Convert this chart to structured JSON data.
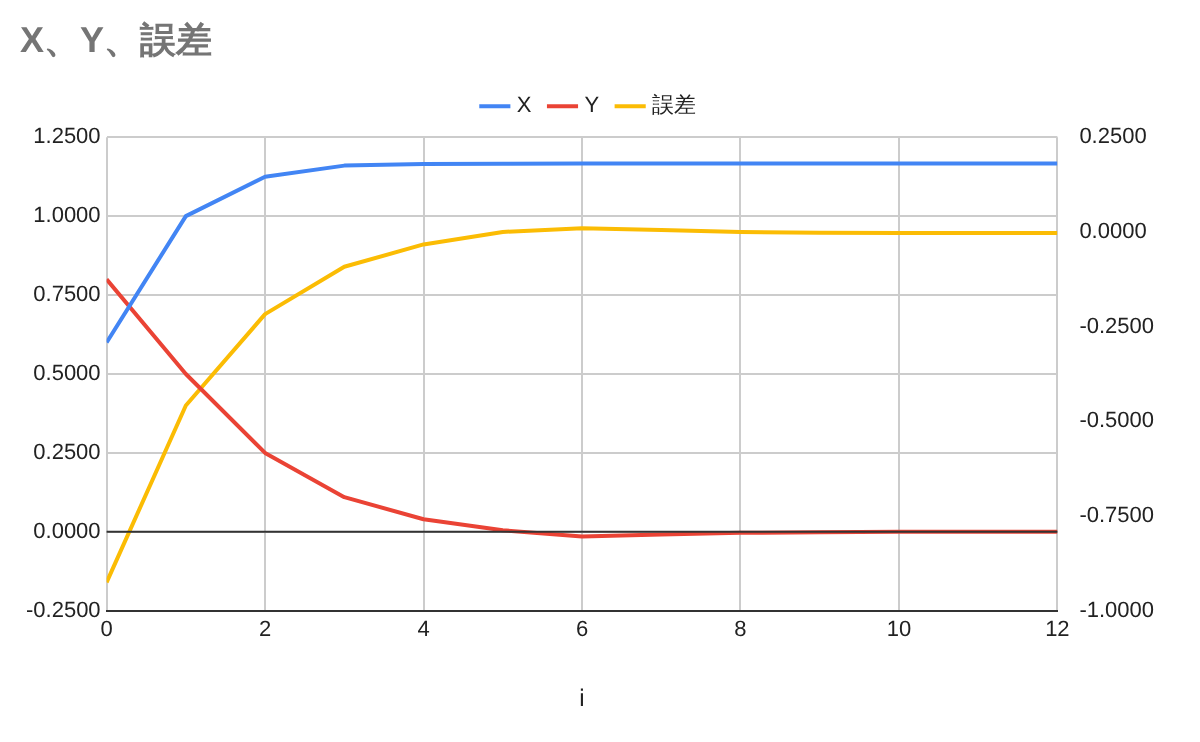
{
  "chart_data": {
    "type": "line",
    "title": "X、Y、誤差",
    "xlabel": "i",
    "x": [
      0,
      1,
      2,
      3,
      4,
      5,
      6,
      7,
      8,
      9,
      10,
      11,
      12
    ],
    "series": [
      {
        "name": "X",
        "color": "#4285f4",
        "values": [
          0.6,
          1.0,
          1.125,
          1.16,
          1.165,
          1.166,
          1.167,
          1.167,
          1.167,
          1.167,
          1.167,
          1.167,
          1.167
        ]
      },
      {
        "name": "Y",
        "color": "#ea4335",
        "values": [
          0.8,
          0.5,
          0.25,
          0.11,
          0.04,
          0.005,
          -0.015,
          -0.008,
          -0.003,
          -0.001,
          0,
          0,
          0
        ]
      },
      {
        "name": "誤差",
        "color": "#fbbc04",
        "axis": "y2",
        "values": [
          -0.925,
          -0.458,
          -0.217,
          -0.092,
          -0.033,
          0.0,
          0.01,
          0.005,
          0.0,
          -0.002,
          -0.003,
          -0.003,
          -0.003
        ]
      }
    ],
    "xlim": [
      0,
      12
    ],
    "xticks": [
      0,
      2,
      4,
      6,
      8,
      10,
      12
    ],
    "ylim": [
      -0.25,
      1.25
    ],
    "yticks": [
      {
        "value": -0.25,
        "label": "-0.2500"
      },
      {
        "value": 0,
        "label": "0.0000"
      },
      {
        "value": 0.25,
        "label": "0.2500"
      },
      {
        "value": 0.5,
        "label": "0.5000"
      },
      {
        "value": 0.75,
        "label": "0.7500"
      },
      {
        "value": 1,
        "label": "1.0000"
      },
      {
        "value": 1.25,
        "label": "1.2500"
      }
    ],
    "y2lim": [
      -1,
      0.25
    ],
    "y2ticks": [
      {
        "value": -1,
        "label": "-1.0000"
      },
      {
        "value": -0.75,
        "label": "-0.7500"
      },
      {
        "value": -0.5,
        "label": "-0.5000"
      },
      {
        "value": -0.25,
        "label": "-0.2500"
      },
      {
        "value": 0,
        "label": "0.0000"
      },
      {
        "value": 0.25,
        "label": "0.2500"
      }
    ],
    "ref_lines": [
      {
        "axis": "y",
        "value": 0,
        "color": "#333333"
      }
    ],
    "grid": true,
    "legend": "top",
    "marker": "none",
    "line_style": "solid"
  }
}
